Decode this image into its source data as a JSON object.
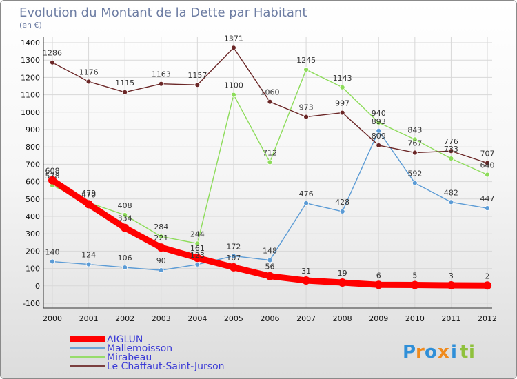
{
  "chart_data": {
    "type": "line",
    "title": "Evolution du Montant de la Dette par Habitant",
    "subtitle": "(en €)",
    "xlabel": "",
    "ylabel": "",
    "ylim": [
      -100,
      1400
    ],
    "yticks": [
      -100,
      0,
      100,
      200,
      300,
      400,
      500,
      600,
      700,
      800,
      900,
      1000,
      1100,
      1200,
      1300,
      1400
    ],
    "grid": true,
    "legend_position": "bottom-left",
    "categories": [
      "2000",
      "2001",
      "2002",
      "2003",
      "2004",
      "2005",
      "2006",
      "2007",
      "2008",
      "2009",
      "2010",
      "2011",
      "2012"
    ],
    "series": [
      {
        "name": "Mallemoisson",
        "color": "#5b9bd5",
        "values": [
          140,
          124,
          106,
          90,
          123,
          172,
          148,
          476,
          428,
          893,
          592,
          482,
          447
        ]
      },
      {
        "name": "Mirabeau",
        "color": "#8ddc5a",
        "values": [
          578,
          479,
          408,
          284,
          244,
          1100,
          712,
          1245,
          1143,
          940,
          843,
          733,
          640
        ]
      },
      {
        "name": "Le Chaffaut-Saint-Jurson",
        "color": "#6b2727",
        "values": [
          1286,
          1176,
          1115,
          1163,
          1157,
          1371,
          1060,
          973,
          997,
          809,
          767,
          776,
          707
        ]
      },
      {
        "name": "AIGLUN",
        "color": "#ff0000",
        "values": [
          608,
          470,
          334,
          221,
          161,
          107,
          56,
          31,
          19,
          6,
          5,
          3,
          2
        ]
      }
    ],
    "legend_order": [
      "AIGLUN",
      "Mallemoisson",
      "Mirabeau",
      "Le Chaffaut-Saint-Jurson"
    ]
  },
  "logo": {
    "text": "Proxiti",
    "letters": [
      "P",
      "r",
      "o",
      "x",
      "i",
      "t",
      "i"
    ],
    "colors": [
      "#2f8fd8",
      "#f08a1c",
      "#2f8fd8",
      "#f08a1c",
      "#2f8fd8",
      "#8fc13c",
      "#8fc13c"
    ]
  }
}
